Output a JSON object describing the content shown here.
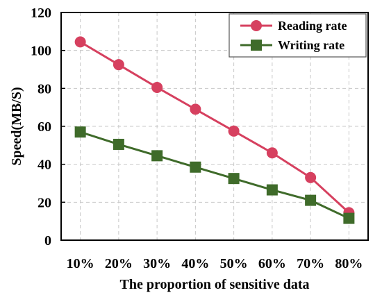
{
  "chart_data": {
    "type": "line",
    "xlabel": "The proportion of sensitive data",
    "ylabel": "Speed(MB/S)",
    "categories": [
      "10%",
      "20%",
      "30%",
      "40%",
      "50%",
      "60%",
      "70%",
      "80%"
    ],
    "ylim": [
      0,
      120
    ],
    "yticks": [
      "0",
      "20",
      "40",
      "60",
      "80",
      "100",
      "120"
    ],
    "grid": true,
    "legend_position": "top-right",
    "series": [
      {
        "name": "Reading rate",
        "color": "#d6405f",
        "marker": "circle",
        "values": [
          104.5,
          92.5,
          80.5,
          69,
          57.5,
          46,
          33,
          14.5
        ]
      },
      {
        "name": "Writing rate",
        "color": "#3f6b2a",
        "marker": "square",
        "values": [
          57,
          50.5,
          44.5,
          38.5,
          32.5,
          26.5,
          21,
          11.5
        ]
      }
    ]
  }
}
